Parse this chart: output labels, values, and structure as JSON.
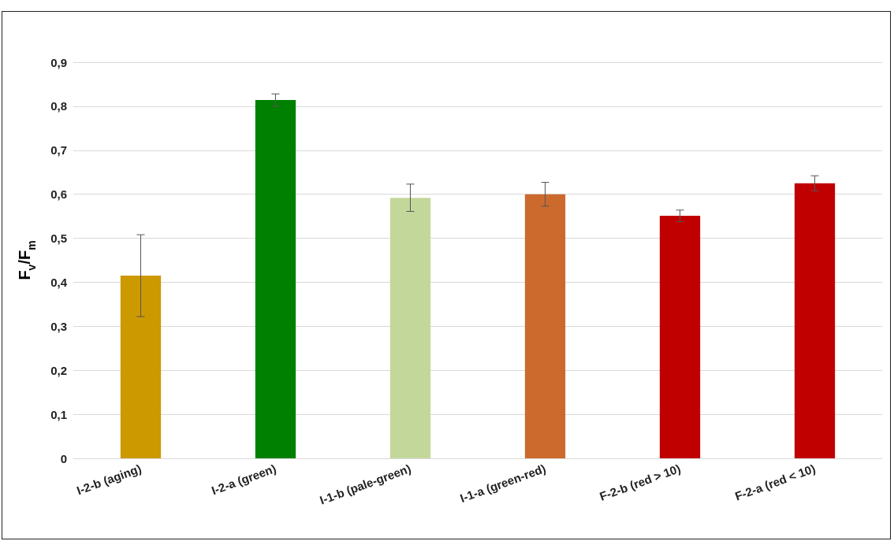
{
  "chart_data": {
    "type": "bar",
    "ylabel": "F$_{v}$/F$_{m}$",
    "categories": [
      "I-2-b (aging)",
      "I-2-a (green)",
      "I-1-b (pale-green)",
      "I-1-a (green-red)",
      "F-2-b (red > 10)",
      "F-2-a (red < 10)"
    ],
    "values": [
      0.415,
      0.814,
      0.592,
      0.6,
      0.551,
      0.625
    ],
    "errors": [
      0.093,
      0.014,
      0.031,
      0.027,
      0.013,
      0.017
    ],
    "colors": [
      "#cc9900",
      "#008000",
      "#c4d79b",
      "#cc6a2e",
      "#c00000",
      "#c00000"
    ],
    "ylim": [
      0,
      0.9
    ],
    "yticks": [
      0,
      {
        "value": 0.1,
        "label": "0,1"
      },
      {
        "value": 0.2,
        "label": "0,2"
      },
      {
        "value": 0.3,
        "label": "0,3"
      },
      {
        "value": 0.4,
        "label": "0,4"
      },
      {
        "value": 0.5,
        "label": "0,5"
      },
      {
        "value": 0.6,
        "label": "0,6"
      },
      {
        "value": 0.7,
        "label": "0,7"
      },
      {
        "value": 0.8,
        "label": "0,8"
      },
      {
        "value": 0.9,
        "label": "0,9"
      }
    ],
    "grid": "y"
  }
}
